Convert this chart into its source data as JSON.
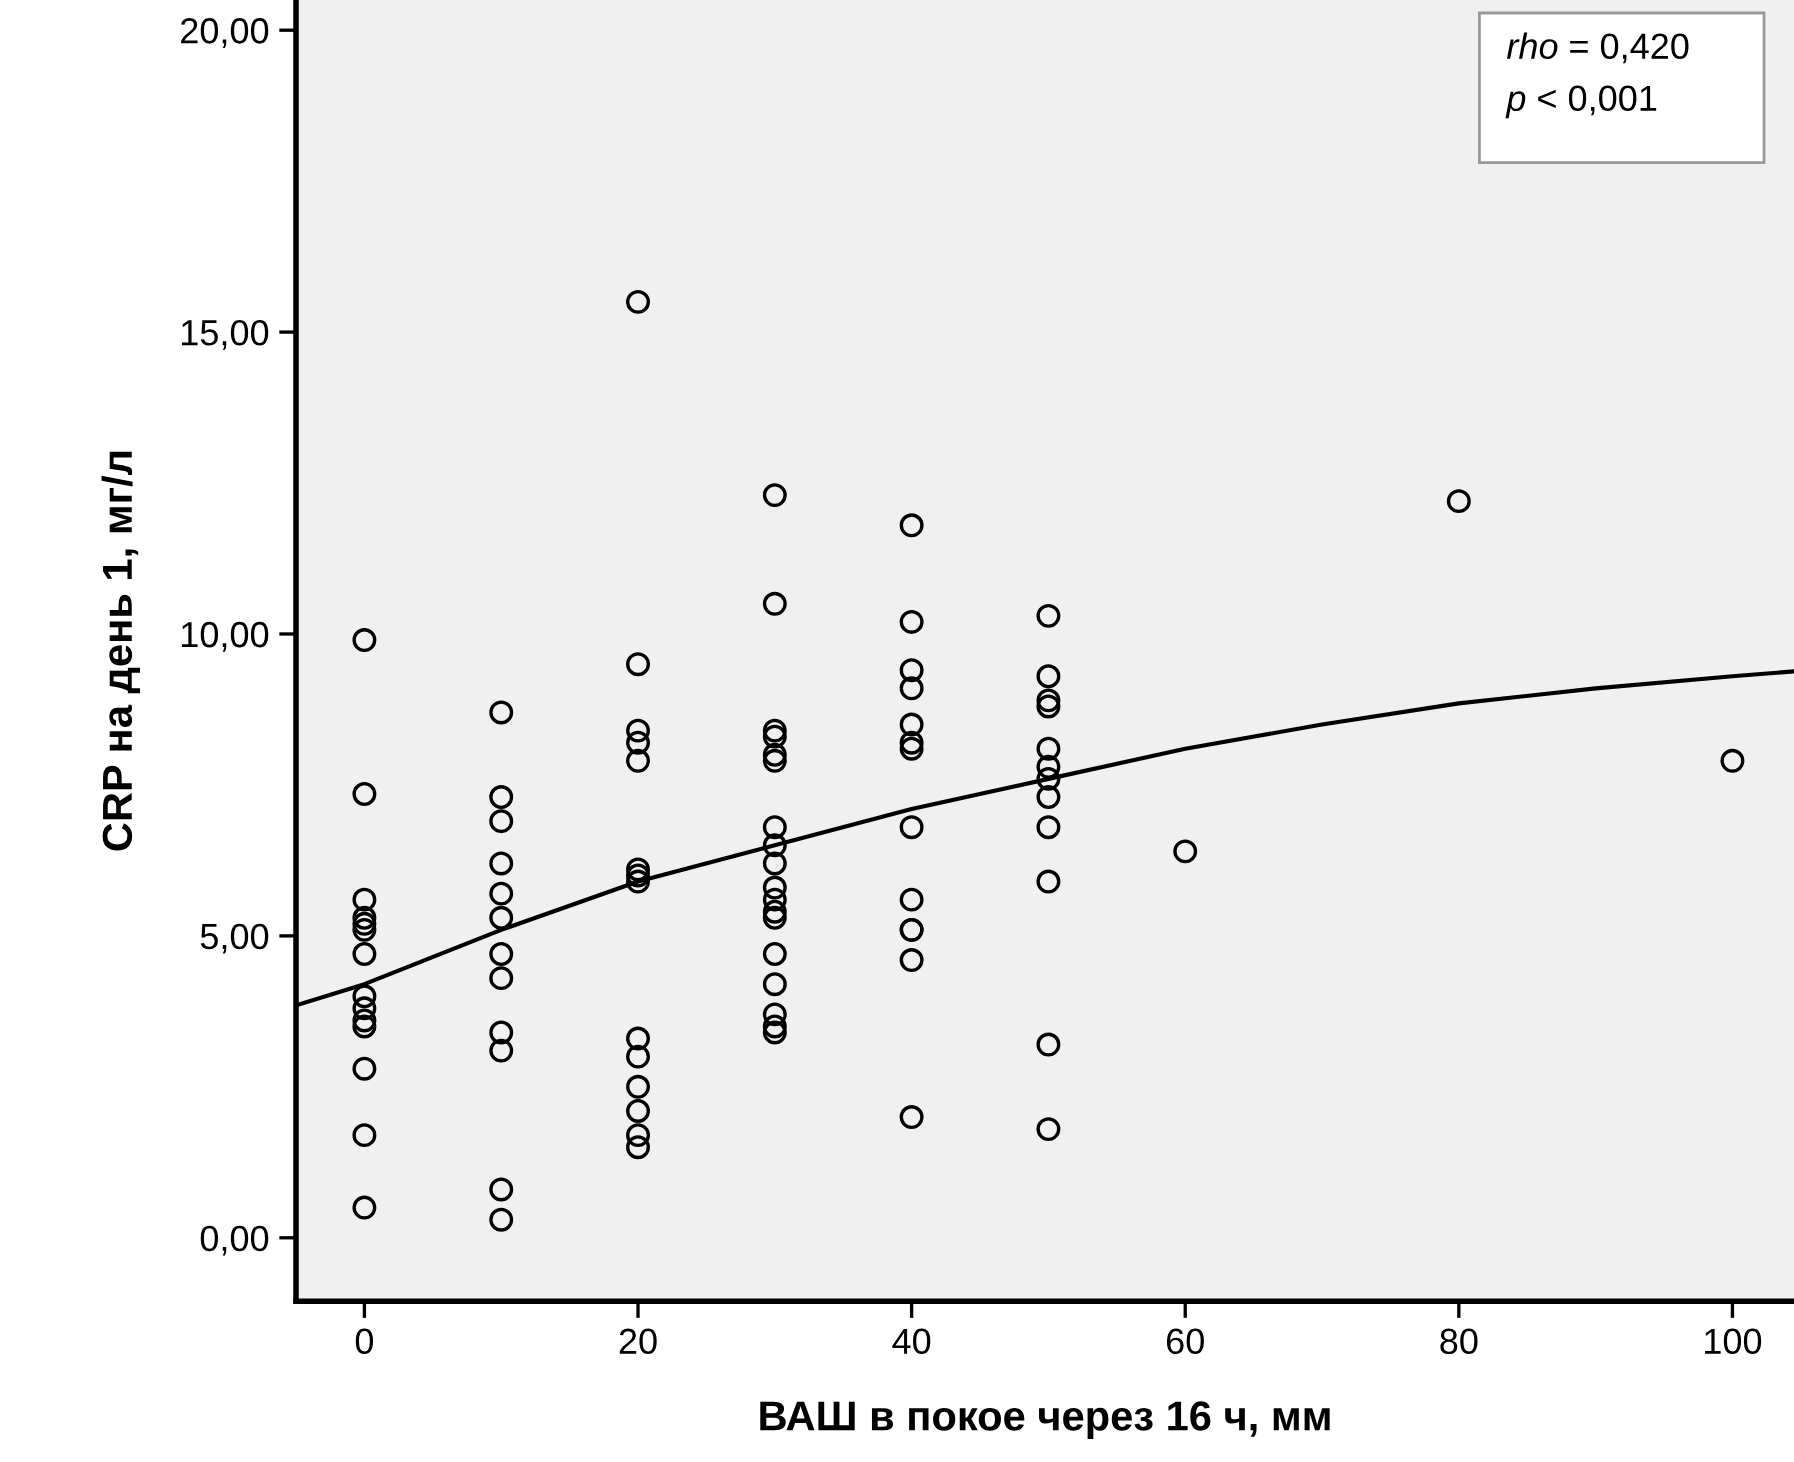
{
  "chart_data": {
    "type": "scatter",
    "xlabel": "ВАШ в покое через 16 ч, мм",
    "ylabel": "CRP на день 1, мг/л",
    "xlim": [
      -5,
      104.5
    ],
    "ylim": [
      -1.05,
      20.5
    ],
    "xticks": [
      0,
      20,
      40,
      60,
      80,
      100
    ],
    "yticks": [
      {
        "value": 0,
        "label": "0,00"
      },
      {
        "value": 5,
        "label": "5,00"
      },
      {
        "value": 10,
        "label": "10,00"
      },
      {
        "value": 15,
        "label": "15,00"
      },
      {
        "value": 20,
        "label": "20,00"
      }
    ],
    "grid": false,
    "legend": false,
    "annotations": [
      "rho = 0,420",
      "p < 0,001"
    ],
    "series": [
      {
        "marker": "circle",
        "color": "#000000",
        "x": [
          0,
          0,
          0,
          0,
          0,
          0,
          0,
          0,
          0,
          0,
          0,
          0,
          0,
          0,
          10,
          10,
          10,
          10,
          10,
          10,
          10,
          10,
          10,
          10,
          10,
          10,
          20,
          20,
          20,
          20,
          20,
          20,
          20,
          20,
          20,
          20,
          20,
          20,
          20,
          20,
          30,
          30,
          30,
          30,
          30,
          30,
          30,
          30,
          30,
          30,
          30,
          30,
          30,
          30,
          30,
          30,
          30,
          30,
          40,
          40,
          40,
          40,
          40,
          40,
          40,
          40,
          40,
          40,
          40,
          40,
          40,
          50,
          50,
          50,
          50,
          50,
          50,
          50,
          50,
          50,
          50,
          50,
          50,
          60,
          80,
          100
        ],
        "values": [
          9.9,
          7.35,
          5.6,
          5.3,
          5.2,
          5.1,
          4.7,
          4.0,
          3.8,
          3.6,
          3.5,
          2.8,
          1.7,
          0.5,
          8.7,
          7.3,
          6.9,
          6.2,
          5.7,
          5.3,
          4.7,
          4.3,
          3.4,
          3.1,
          0.8,
          0.3,
          15.5,
          9.5,
          8.4,
          8.2,
          7.9,
          6.1,
          6.0,
          5.9,
          3.3,
          3.0,
          2.5,
          2.1,
          1.7,
          1.5,
          12.3,
          10.5,
          8.4,
          8.3,
          8.0,
          7.9,
          6.8,
          6.5,
          6.2,
          5.8,
          5.6,
          5.4,
          5.3,
          4.7,
          4.2,
          3.7,
          3.5,
          3.4,
          11.8,
          10.2,
          9.4,
          9.1,
          8.5,
          8.2,
          8.1,
          6.8,
          5.6,
          5.1,
          5.1,
          4.6,
          2.0,
          10.3,
          9.3,
          8.9,
          8.8,
          8.1,
          7.8,
          7.6,
          7.3,
          6.8,
          5.9,
          3.2,
          1.8,
          6.4,
          12.2,
          7.9
        ]
      },
      {
        "type": "line",
        "marker": "none",
        "color": "#000000",
        "x": [
          -5,
          0,
          10,
          20,
          30,
          40,
          50,
          60,
          70,
          80,
          90,
          100,
          104.5
        ],
        "values": [
          3.85,
          4.2,
          5.1,
          5.9,
          6.5,
          7.1,
          7.6,
          8.1,
          8.5,
          8.85,
          9.1,
          9.3,
          9.38
        ]
      }
    ]
  }
}
